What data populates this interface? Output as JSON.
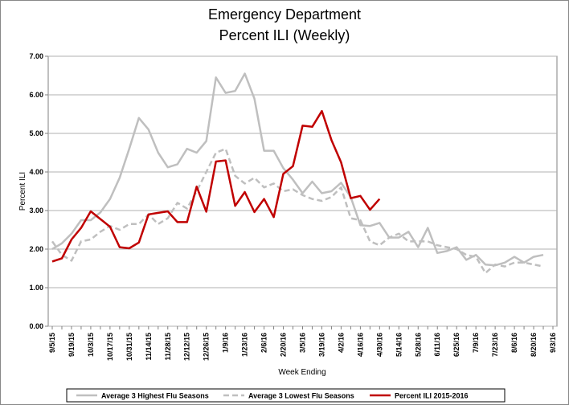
{
  "chart_data": {
    "type": "line",
    "title": [
      "Emergency Department",
      "Percent ILI (Weekly)"
    ],
    "x_label": "Week Ending",
    "y_label": "Percent ILI",
    "categories": [
      "9/5/15",
      null,
      "9/19/15",
      null,
      "10/3/15",
      null,
      "10/17/15",
      null,
      "10/31/15",
      null,
      "11/14/15",
      null,
      "11/28/15",
      null,
      "12/12/15",
      null,
      "12/26/15",
      null,
      "1/9/16",
      null,
      "1/23/16",
      null,
      "2/6/16",
      null,
      "2/20/16",
      null,
      "3/5/16",
      null,
      "3/19/16",
      null,
      "4/2/16",
      null,
      "4/16/16",
      null,
      "4/30/16",
      null,
      "5/14/16",
      null,
      "5/28/16",
      null,
      "6/11/16",
      null,
      "6/25/16",
      null,
      "7/9/16",
      null,
      "7/23/16",
      null,
      "8/6/16",
      null,
      "8/20/16",
      null,
      "9/3/16"
    ],
    "series": [
      {
        "name": "Average 3 Highest Flu Seasons",
        "color": "#bfbfbf",
        "dashed": false,
        "values": [
          2.0,
          2.15,
          2.4,
          2.75,
          2.75,
          2.95,
          3.3,
          3.85,
          4.6,
          5.4,
          5.1,
          4.5,
          4.12,
          4.2,
          4.6,
          4.5,
          4.8,
          6.45,
          6.05,
          6.1,
          6.55,
          5.9,
          4.55,
          4.55,
          4.1,
          3.8,
          3.45,
          3.75,
          3.45,
          3.5,
          3.72,
          3.35,
          2.62,
          2.6,
          2.68,
          2.3,
          2.3,
          2.45,
          2.05,
          2.55,
          1.9,
          1.95,
          2.05,
          1.72,
          1.85,
          1.6,
          1.58,
          1.65,
          1.8,
          1.65,
          1.8,
          1.85,
          null
        ]
      },
      {
        "name": "Average 3 Lowest Flu Seasons",
        "color": "#bfbfbf",
        "dashed": true,
        "values": [
          2.2,
          1.85,
          1.7,
          2.2,
          2.25,
          2.45,
          2.6,
          2.5,
          2.65,
          2.65,
          2.9,
          2.65,
          2.8,
          3.2,
          3.05,
          3.5,
          4.0,
          4.5,
          4.6,
          3.9,
          3.7,
          3.85,
          3.6,
          3.7,
          3.5,
          3.55,
          3.4,
          3.3,
          3.25,
          3.35,
          3.6,
          2.8,
          2.75,
          2.2,
          2.1,
          2.3,
          2.4,
          2.2,
          2.2,
          2.2,
          2.1,
          2.05,
          2.0,
          1.85,
          1.8,
          1.38,
          1.6,
          1.55,
          1.65,
          1.65,
          1.6,
          1.55,
          null
        ]
      },
      {
        "name": "Percent ILI 2015-2016",
        "color": "#c00000",
        "dashed": false,
        "values": [
          1.68,
          1.76,
          2.25,
          2.55,
          2.98,
          2.78,
          2.58,
          2.05,
          2.02,
          2.17,
          2.9,
          2.94,
          2.98,
          2.7,
          2.7,
          3.62,
          2.97,
          4.27,
          4.3,
          3.12,
          3.48,
          2.96,
          3.3,
          2.83,
          3.95,
          4.15,
          5.2,
          5.17,
          5.58,
          4.83,
          4.25,
          3.32,
          3.38,
          3.02,
          3.3,
          null,
          null,
          null,
          null,
          null,
          null,
          null,
          null,
          null,
          null,
          null,
          null,
          null,
          null,
          null,
          null,
          null,
          null
        ]
      }
    ],
    "ylim": [
      0,
      7
    ],
    "yticks": [
      {
        "value": 0,
        "label": "0.00"
      },
      {
        "value": 1,
        "label": "1.00"
      },
      {
        "value": 2,
        "label": "2.00"
      },
      {
        "value": 3,
        "label": "3.00"
      },
      {
        "value": 4,
        "label": "4.00"
      },
      {
        "value": 5,
        "label": "5.00"
      },
      {
        "value": 6,
        "label": "6.00"
      },
      {
        "value": 7,
        "label": "7.00"
      }
    ],
    "grid": true,
    "legend": "bottom"
  }
}
